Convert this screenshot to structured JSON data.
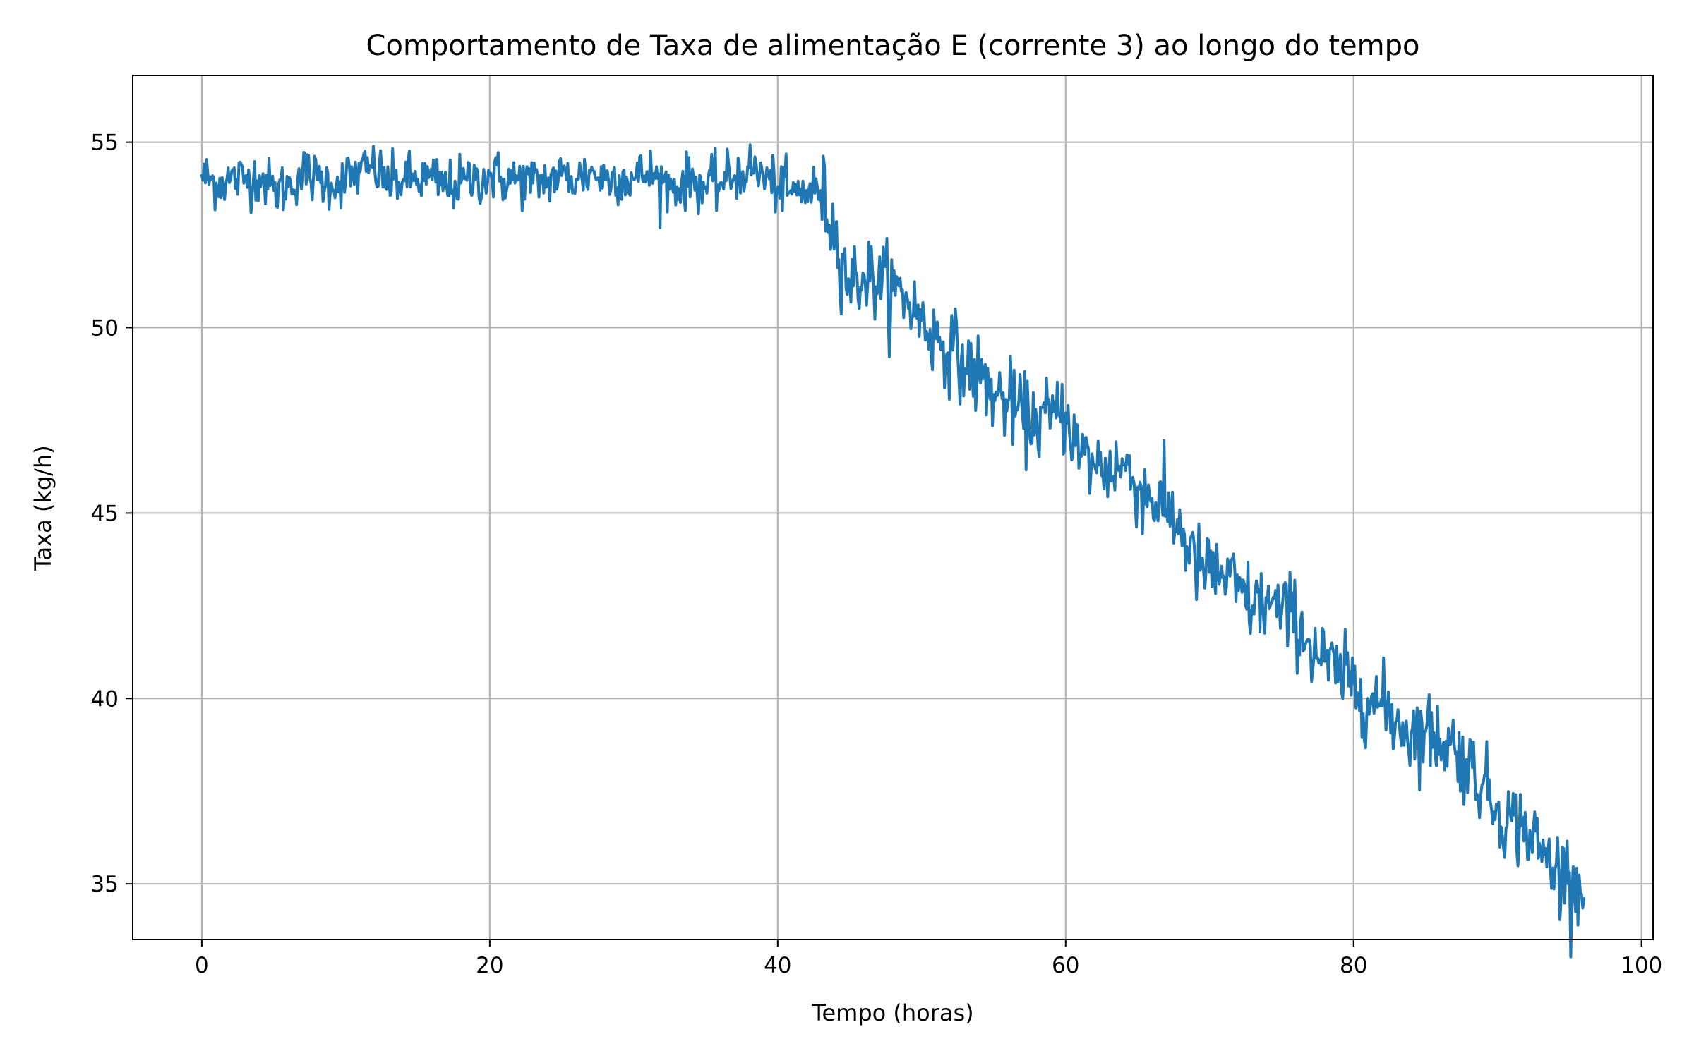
{
  "chart_data": {
    "type": "line",
    "title": "Comportamento de Taxa de alimentação E (corrente 3) ao longo do tempo",
    "xlabel": "Tempo (horas)",
    "ylabel": "Taxa (kg/h)",
    "xlim": [
      -4.8,
      100.8
    ],
    "ylim": [
      33.5,
      56.8
    ],
    "xticks": [
      0,
      20,
      40,
      60,
      80,
      100
    ],
    "xtick_labels": [
      "0",
      "20",
      "40",
      "60",
      "80",
      "100"
    ],
    "yticks": [
      35,
      40,
      45,
      50,
      55
    ],
    "ytick_labels": [
      "35",
      "40",
      "45",
      "50",
      "55"
    ],
    "grid": true,
    "colors": {
      "line": "#1f77b4",
      "grid": "#b0b0b0",
      "axes": "#000000"
    },
    "series": [
      {
        "x": [
          0,
          1,
          2,
          3,
          4,
          5,
          6,
          7,
          8,
          9,
          10,
          11,
          12,
          13,
          14,
          15,
          16,
          17,
          18,
          19,
          20,
          21,
          22,
          23,
          24,
          25,
          26,
          27,
          28,
          29,
          30,
          31,
          32,
          33,
          34,
          35,
          36,
          37,
          38,
          39,
          40,
          41,
          42,
          43,
          44,
          45,
          46,
          47,
          48,
          49,
          50,
          51,
          52,
          53,
          54,
          55,
          56,
          57,
          58,
          59,
          60,
          61,
          62,
          63,
          64,
          65,
          66,
          67,
          68,
          69,
          70,
          71,
          72,
          73,
          74,
          75,
          76,
          77,
          78,
          79,
          80,
          81,
          82,
          83,
          84,
          85,
          86,
          87,
          88,
          89,
          90,
          91,
          92,
          93,
          94,
          95,
          96
        ],
        "y": [
          54.1,
          53.9,
          54.0,
          54.0,
          54.1,
          53.7,
          53.8,
          54.2,
          54.0,
          53.9,
          54.0,
          54.2,
          54.3,
          53.9,
          54.0,
          54.0,
          54.0,
          53.8,
          53.9,
          54.0,
          54.1,
          54.0,
          54.0,
          53.9,
          54.0,
          54.1,
          54.0,
          54.2,
          54.0,
          54.1,
          54.0,
          54.2,
          53.9,
          53.8,
          54.0,
          53.8,
          53.9,
          54.1,
          54.3,
          54.1,
          53.8,
          53.6,
          53.7,
          53.7,
          52.5,
          51.2,
          51.4,
          51.3,
          51.0,
          50.8,
          50.2,
          49.7,
          49.5,
          48.9,
          48.7,
          48.2,
          48.0,
          47.6,
          47.5,
          47.6,
          47.7,
          46.6,
          46.3,
          46.2,
          46.3,
          45.7,
          45.4,
          45.1,
          44.6,
          43.6,
          43.4,
          43.3,
          42.9,
          42.5,
          42.6,
          42.3,
          42.2,
          41.4,
          41.0,
          40.6,
          40.4,
          40.0,
          39.8,
          39.4,
          39.1,
          39.1,
          38.9,
          38.7,
          38.2,
          37.7,
          37.0,
          36.7,
          36.5,
          35.9,
          35.4,
          35.3,
          34.6
        ]
      }
    ]
  }
}
